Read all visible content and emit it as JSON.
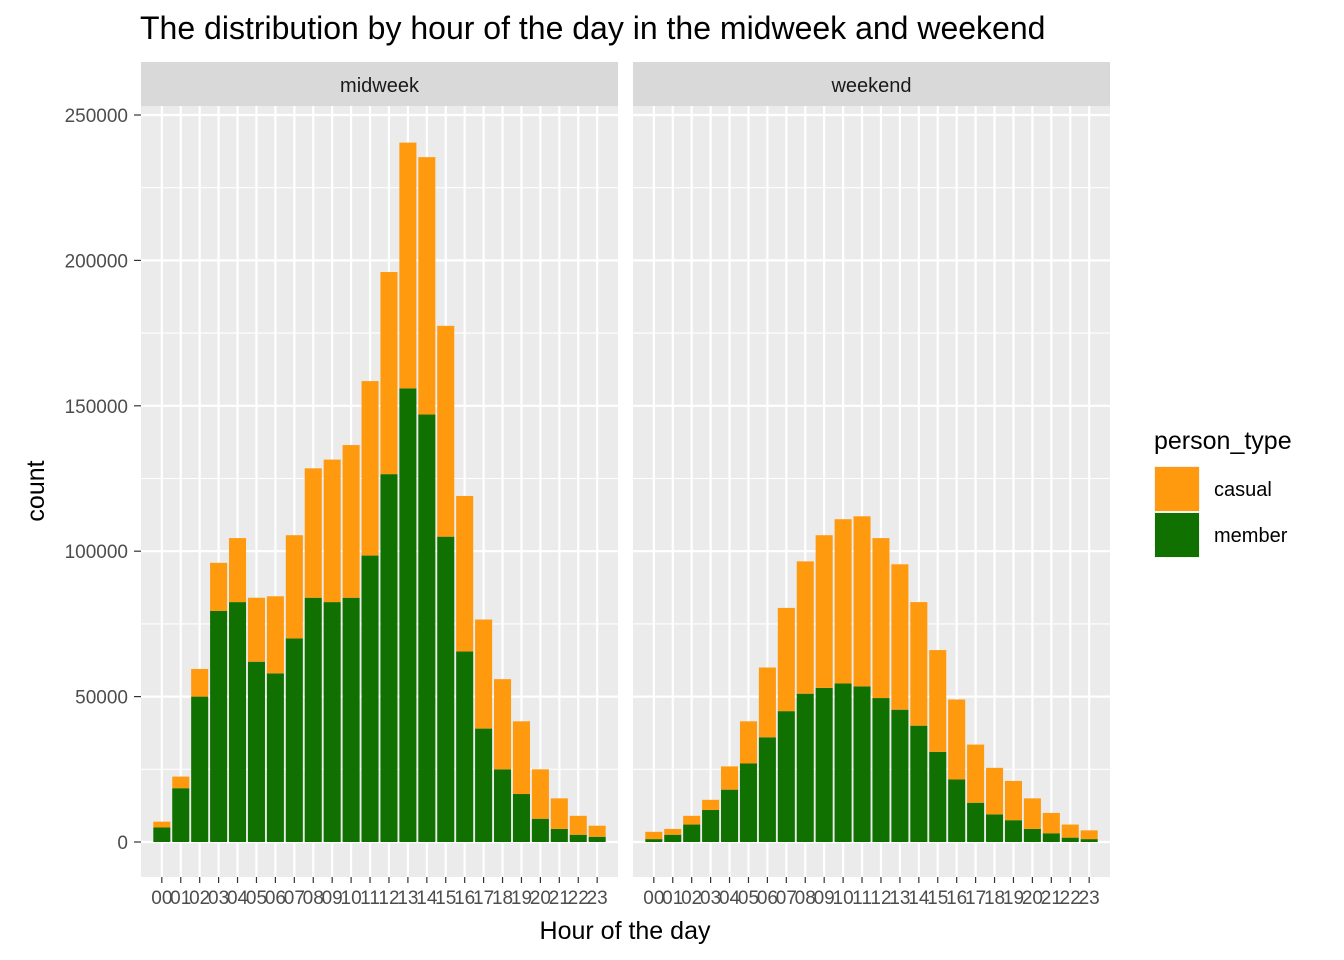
{
  "chart_data": {
    "type": "bar",
    "stacked": true,
    "title": "The distribution by hour of the day in the midweek and weekend",
    "xlabel": "Hour of the day",
    "ylabel": "count",
    "ylim": [
      0,
      250000
    ],
    "yticks": [
      0,
      50000,
      100000,
      150000,
      200000,
      250000
    ],
    "grid": true,
    "legend": {
      "title": "person_type",
      "position": "right"
    },
    "categories": [
      "00",
      "01",
      "02",
      "03",
      "04",
      "05",
      "06",
      "07",
      "08",
      "09",
      "10",
      "11",
      "12",
      "13",
      "14",
      "15",
      "16",
      "17",
      "18",
      "19",
      "20",
      "21",
      "22",
      "23"
    ],
    "colors": {
      "casual": "#ff990e",
      "member": "#117100"
    },
    "panels": [
      {
        "name": "midweek",
        "series": [
          {
            "name": "member",
            "values": [
              5000,
              18500,
              50000,
              79500,
              82500,
              62000,
              58000,
              70000,
              84000,
              82500,
              84000,
              98500,
              126500,
              156000,
              147000,
              105000,
              65500,
              39000,
              25000,
              16500,
              8000,
              4500,
              2500,
              1800
            ]
          },
          {
            "name": "casual",
            "values": [
              2000,
              4000,
              9500,
              16500,
              22000,
              22000,
              26500,
              35500,
              44500,
              49000,
              52500,
              60000,
              69500,
              84500,
              88500,
              72500,
              53500,
              37500,
              31000,
              25000,
              17000,
              10500,
              6500,
              3800
            ]
          }
        ]
      },
      {
        "name": "weekend",
        "series": [
          {
            "name": "member",
            "values": [
              1000,
              2500,
              6000,
              11000,
              18000,
              27000,
              36000,
              45000,
              51000,
              53000,
              54500,
              53500,
              49500,
              45500,
              40000,
              31000,
              21500,
              13500,
              9500,
              7500,
              4500,
              3000,
              1500,
              1000
            ]
          },
          {
            "name": "casual",
            "values": [
              2500,
              2000,
              3000,
              3500,
              8000,
              14500,
              24000,
              35500,
              45500,
              52500,
              56500,
              58500,
              55000,
              50000,
              42500,
              35000,
              27500,
              20000,
              16000,
              13500,
              10500,
              7000,
              4500,
              3000
            ]
          }
        ]
      }
    ]
  }
}
